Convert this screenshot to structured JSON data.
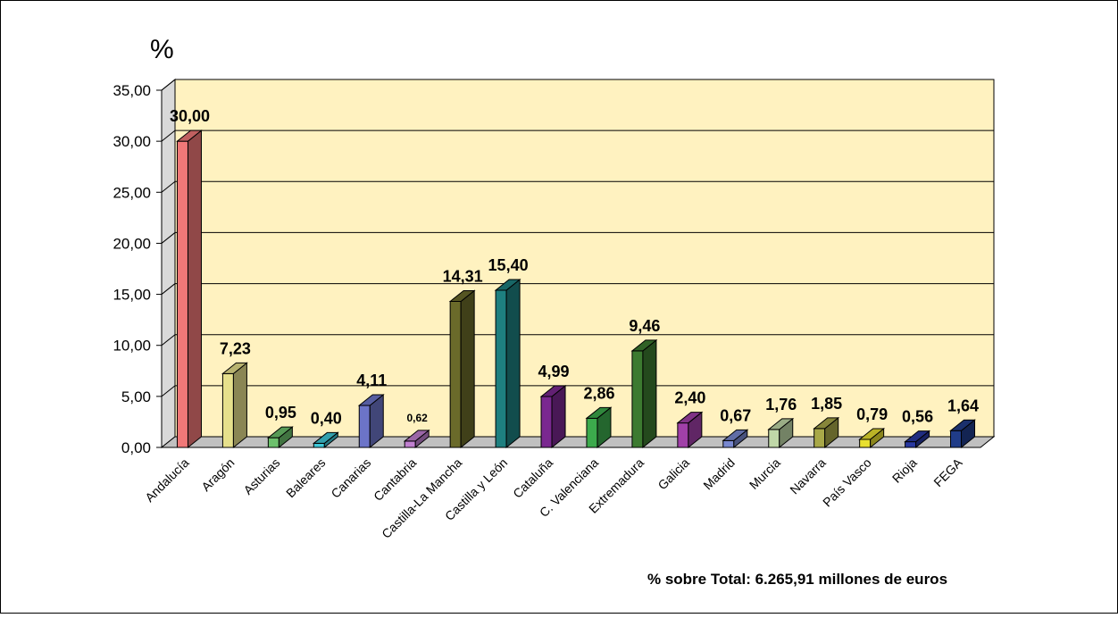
{
  "chart_data": {
    "type": "bar",
    "unit_label": "%",
    "footnote": "% sobre Total: 6.265,91  millones de euros",
    "categories": [
      "Andalucía",
      "Aragón",
      "Asturias",
      "Baleares",
      "Canarias",
      "Cantabria",
      "Castilla-La Mancha",
      "Castilla y León",
      "Cataluña",
      "C. Valenciana",
      "Extremadura",
      "Galicia",
      "Madrid",
      "Murcia",
      "Navarra",
      "País Vasco",
      "Rioja",
      "FEGA"
    ],
    "values": [
      30.0,
      7.23,
      0.95,
      0.4,
      4.11,
      0.62,
      14.31,
      15.4,
      4.99,
      2.86,
      9.46,
      2.4,
      0.67,
      1.76,
      1.85,
      0.79,
      0.56,
      1.64
    ],
    "value_labels": [
      "30,00",
      "7,23",
      "0,95",
      "0,40",
      "4,11",
      "0,62",
      "14,31",
      "15,40",
      "4,99",
      "2,86",
      "9,46",
      "2,40",
      "0,67",
      "1,76",
      "1,85",
      "0,79",
      "0,56",
      "1,64"
    ],
    "ylim": [
      0,
      35
    ],
    "yticks": [
      "0,00",
      "5,00",
      "10,00",
      "15,00",
      "20,00",
      "25,00",
      "30,00",
      "35,00"
    ],
    "grid": true,
    "wall_color": "#FFF2C0",
    "colors": [
      "#F07878",
      "#E6E08C",
      "#6CC06C",
      "#40C8D8",
      "#6C74C8",
      "#C080D0",
      "#6A6A2A",
      "#1E8080",
      "#7A2890",
      "#3CAA4C",
      "#3C7A30",
      "#A040A8",
      "#7888D0",
      "#C0D8A8",
      "#A8A848",
      "#E8E030",
      "#2838A0",
      "#203C88"
    ]
  }
}
